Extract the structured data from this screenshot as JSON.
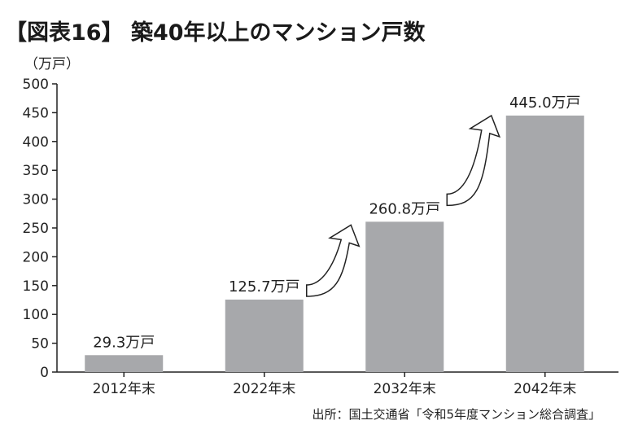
{
  "title": "【図表16】 築40年以上のマンション戸数",
  "source": "出所：国土交通省「令和5年度マンション総合調査」",
  "colors": {
    "bar": "#a7a8ab",
    "axis": "#222222",
    "text": "#222222"
  },
  "chart_data": {
    "type": "bar",
    "title": "【図表16】 築40年以上のマンション戸数",
    "ylabel": "（万戸）",
    "xlabel": "",
    "ylim": [
      0,
      500
    ],
    "yticks": [
      "0",
      "50",
      "100",
      "150",
      "200",
      "250",
      "300",
      "350",
      "400",
      "450",
      "500"
    ],
    "categories": [
      "2012年末",
      "2022年末",
      "2032年末",
      "2042年末"
    ],
    "values": [
      29.3,
      125.7,
      260.8,
      445.0
    ],
    "data_labels": [
      "29.3万戸",
      "125.7万戸",
      "260.8万戸",
      "445.0万戸"
    ],
    "annotations": [
      "arrow-2022-2032",
      "arrow-2032-2042"
    ],
    "grid": false,
    "legend": "none"
  }
}
